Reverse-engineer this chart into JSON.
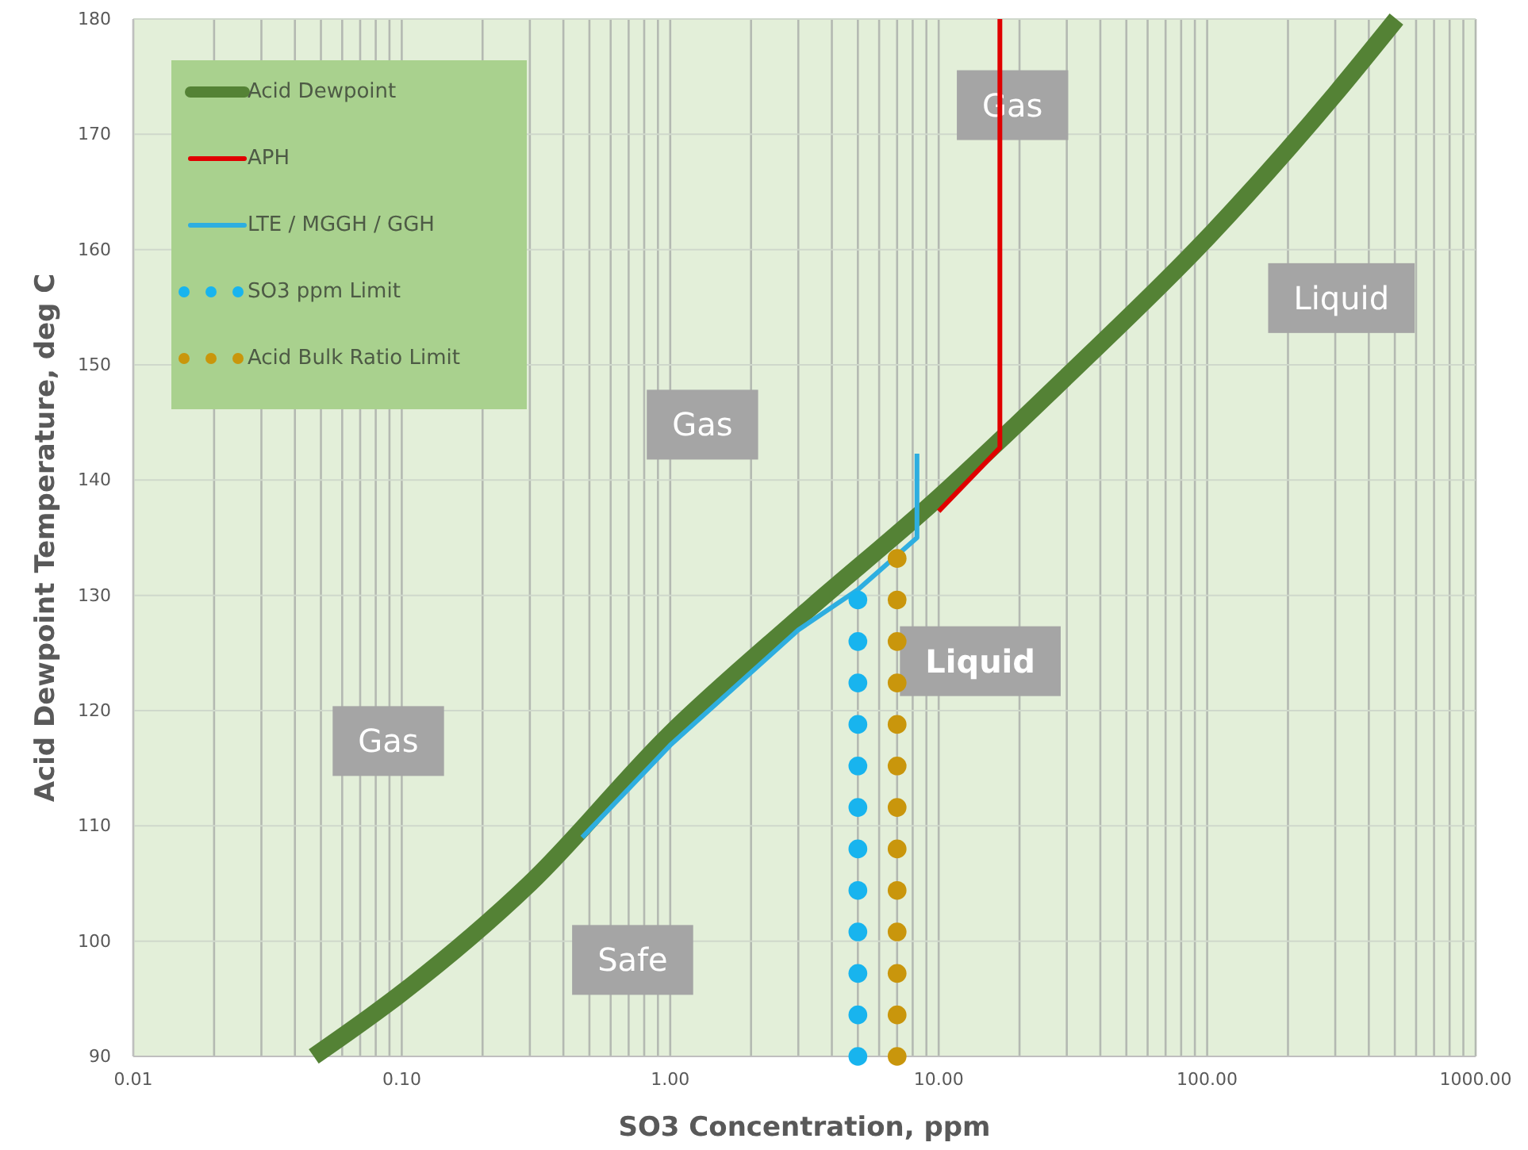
{
  "chart_data": {
    "type": "line",
    "xlabel": "SO3 Concentration, ppm",
    "ylabel": "Acid Dewpoint Temperature, deg C",
    "log": "x",
    "grid": true,
    "legend": "top left",
    "line_style": "solid",
    "xlim": [
      0.01,
      1000
    ],
    "ylim": [
      90,
      180
    ],
    "xticks": [
      {
        "value": 0.01,
        "label": "0.01"
      },
      {
        "value": 0.02,
        "label": null
      },
      {
        "value": 0.03,
        "label": null
      },
      {
        "value": 0.04,
        "label": null
      },
      {
        "value": 0.05,
        "label": null
      },
      {
        "value": 0.06,
        "label": null
      },
      {
        "value": 0.07,
        "label": null
      },
      {
        "value": 0.08,
        "label": null
      },
      {
        "value": 0.09,
        "label": null
      },
      {
        "value": 0.1,
        "label": "0.10"
      },
      {
        "value": 0.2,
        "label": null
      },
      {
        "value": 0.3,
        "label": null
      },
      {
        "value": 0.4,
        "label": null
      },
      {
        "value": 0.5,
        "label": null
      },
      {
        "value": 0.6,
        "label": null
      },
      {
        "value": 0.7,
        "label": null
      },
      {
        "value": 0.8,
        "label": null
      },
      {
        "value": 0.9,
        "label": null
      },
      {
        "value": 1,
        "label": "1.00"
      },
      {
        "value": 2,
        "label": null
      },
      {
        "value": 3,
        "label": null
      },
      {
        "value": 4,
        "label": null
      },
      {
        "value": 5,
        "label": null
      },
      {
        "value": 6,
        "label": null
      },
      {
        "value": 7,
        "label": null
      },
      {
        "value": 8,
        "label": null
      },
      {
        "value": 9,
        "label": null
      },
      {
        "value": 10,
        "label": "10.00"
      },
      {
        "value": 20,
        "label": null
      },
      {
        "value": 30,
        "label": null
      },
      {
        "value": 40,
        "label": null
      },
      {
        "value": 50,
        "label": null
      },
      {
        "value": 60,
        "label": null
      },
      {
        "value": 70,
        "label": null
      },
      {
        "value": 80,
        "label": null
      },
      {
        "value": 90,
        "label": null
      },
      {
        "value": 100,
        "label": "100.00"
      },
      {
        "value": 200,
        "label": null
      },
      {
        "value": 300,
        "label": null
      },
      {
        "value": 400,
        "label": null
      },
      {
        "value": 500,
        "label": null
      },
      {
        "value": 600,
        "label": null
      },
      {
        "value": 700,
        "label": null
      },
      {
        "value": 800,
        "label": null
      },
      {
        "value": 900,
        "label": null
      },
      {
        "value": 1000,
        "label": "1000.00"
      }
    ],
    "yticks": [
      90,
      100,
      110,
      120,
      130,
      140,
      150,
      160,
      170,
      180
    ],
    "series": [
      {
        "name": "Acid Dewpoint",
        "color": "#548235",
        "x": [
          0.047,
          0.1,
          0.3,
          1,
          3,
          10,
          30,
          100,
          300,
          507
        ],
        "values": [
          90,
          95.5,
          105,
          118,
          128,
          138.5,
          149,
          161,
          173.5,
          180
        ]
      },
      {
        "name": "APH",
        "color": "#e00000",
        "x": [
          10,
          16.9,
          16.9
        ],
        "values": [
          137.3,
          142.8,
          180
        ]
      },
      {
        "name": "LTE / MGGH / GGH",
        "color": "#2eaee0",
        "x": [
          0.47,
          1,
          3,
          5,
          8.3,
          8.3
        ],
        "values": [
          109,
          117,
          127,
          130.5,
          135,
          142.3
        ]
      },
      {
        "name": "SO3 ppm Limit",
        "type": "scatter",
        "marker": "circle",
        "color": "#18b4ee",
        "x": [
          5,
          5,
          5,
          5,
          5,
          5,
          5,
          5,
          5,
          5,
          5,
          5
        ],
        "values": [
          90,
          93.6,
          97.2,
          100.8,
          104.4,
          108,
          111.6,
          115.2,
          118.8,
          122.4,
          126,
          129.6
        ]
      },
      {
        "name": "Acid Bulk Ratio Limit",
        "type": "scatter",
        "marker": "circle",
        "color": "#c9960c",
        "x": [
          7,
          7,
          7,
          7,
          7,
          7,
          7,
          7,
          7,
          7,
          7,
          7,
          7
        ],
        "values": [
          90,
          93.6,
          97.2,
          100.8,
          104.4,
          108,
          111.6,
          115.2,
          118.8,
          122.4,
          126,
          129.6,
          133.2
        ]
      }
    ],
    "annotations": [
      "Gas",
      "Liquid",
      "Gas",
      "Liquid",
      "Gas",
      "Safe"
    ]
  }
}
